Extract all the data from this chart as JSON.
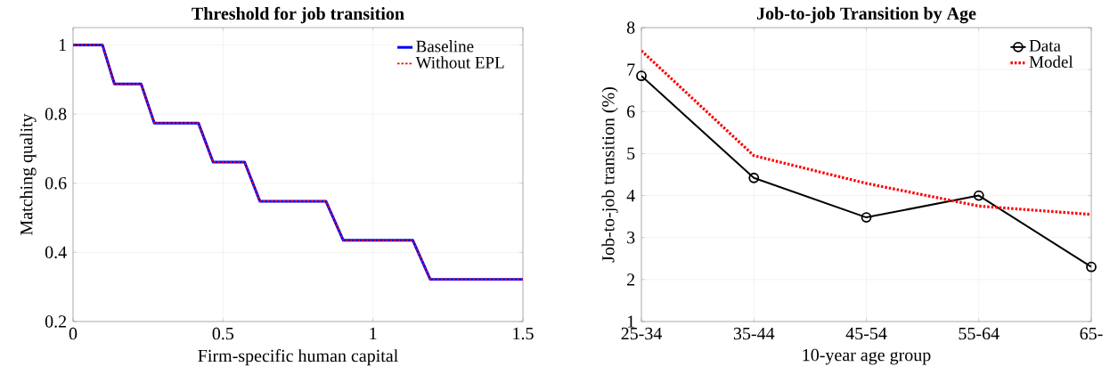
{
  "chart_data": [
    {
      "type": "line",
      "title": "Threshold for job transition",
      "xlabel": "Firm-specific human capital",
      "ylabel": "Matching quality",
      "xlim": [
        0,
        1.5
      ],
      "ylim": [
        0.2,
        1.05
      ],
      "xticks": [
        0,
        0.5,
        1,
        1.5
      ],
      "yticks": [
        0.2,
        0.4,
        0.6,
        0.8,
        1
      ],
      "grid": true,
      "legend": "top right",
      "series": [
        {
          "name": "Baseline",
          "color": "#0000ff",
          "line_style": "solid",
          "x": [
            0,
            0.098,
            0.138,
            0.227,
            0.271,
            0.418,
            0.467,
            0.572,
            0.623,
            0.843,
            0.901,
            1.133,
            1.191,
            1.5
          ],
          "values": [
            1,
            1,
            0.887,
            0.887,
            0.774,
            0.774,
            0.661,
            0.661,
            0.548,
            0.548,
            0.435,
            0.435,
            0.322,
            0.322
          ]
        },
        {
          "name": "Without EPL",
          "color": "#ff0000",
          "line_style": "dotted",
          "x": [
            0,
            0.098,
            0.138,
            0.227,
            0.271,
            0.418,
            0.467,
            0.572,
            0.623,
            0.843,
            0.901,
            1.133,
            1.191,
            1.5
          ],
          "values": [
            1,
            1,
            0.887,
            0.887,
            0.774,
            0.774,
            0.661,
            0.661,
            0.548,
            0.548,
            0.435,
            0.435,
            0.322,
            0.322
          ]
        }
      ]
    },
    {
      "type": "line",
      "title": "Job-to-job Transition by Age",
      "xlabel": "10-year age group",
      "ylabel": "Job-to-job transition (%)",
      "categories": [
        "25-34",
        "35-44",
        "45-54",
        "55-64",
        "65-"
      ],
      "ylim": [
        1,
        8
      ],
      "yticks": [
        1,
        2,
        3,
        4,
        5,
        6,
        7,
        8
      ],
      "grid": true,
      "legend": "top right",
      "series": [
        {
          "name": "Data",
          "color": "#000000",
          "line_style": "solid",
          "marker": "circle",
          "values": [
            6.85,
            4.42,
            3.48,
            4.0,
            2.3
          ]
        },
        {
          "name": "Model",
          "color": "#ff0000",
          "line_style": "dotted",
          "values": [
            7.45,
            4.95,
            4.29,
            3.75,
            3.55
          ]
        }
      ]
    }
  ]
}
